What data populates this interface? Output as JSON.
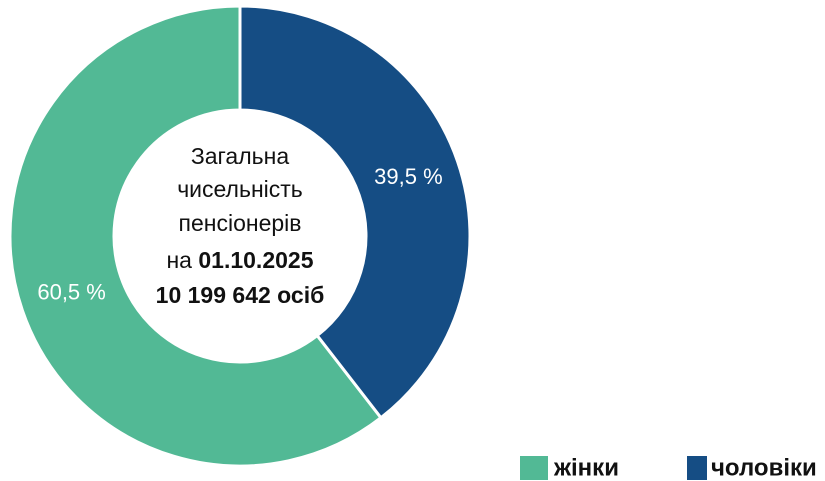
{
  "chart_data": {
    "type": "donut",
    "categories": [
      "жінки",
      "чоловіки"
    ],
    "values": [
      60.5,
      39.5
    ],
    "value_labels": [
      "60,5 %",
      "39,5 %"
    ],
    "colors": [
      "#52b995",
      "#154d84"
    ],
    "center_text": [
      "Загальна",
      "чисельність",
      "пенсіонерів"
    ],
    "center_date_prefix": "на",
    "center_date": "01.10.2025",
    "center_total": "10 199 642 осіб",
    "legend": "bottom-right"
  }
}
